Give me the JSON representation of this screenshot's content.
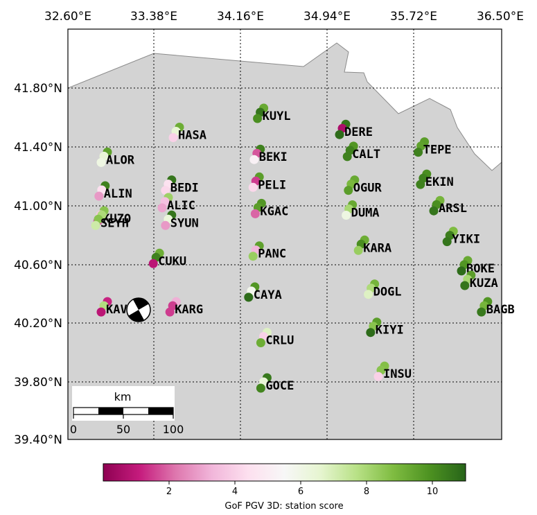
{
  "map": {
    "lon_ticks": [
      "32.60°E",
      "33.38°E",
      "34.16°E",
      "34.94°E",
      "35.72°E",
      "36.50°E"
    ],
    "lat_ticks": [
      "41.80°N",
      "41.40°N",
      "41.00°N",
      "40.60°N",
      "40.20°N",
      "39.80°N",
      "39.40°N"
    ],
    "extent": {
      "lon_min": 32.6,
      "lon_max": 36.5,
      "lat_min": 39.4,
      "lat_max": 42.2
    },
    "land_color": "#d3d3d3",
    "sea_color": "#ffffff",
    "gridlines": "dotted"
  },
  "scale_bar": {
    "unit": "km",
    "labels": [
      "0",
      "50",
      "100"
    ]
  },
  "event": {
    "lon": 33.24,
    "lat": 40.3,
    "symbol": "beachball"
  },
  "colorbar": {
    "title": "GoF PGV 3D: station score",
    "ticks": [
      "2",
      "4",
      "6",
      "8",
      "10"
    ],
    "range": [
      0,
      11
    ],
    "colormap": "PiYG",
    "colors": [
      "#8e0152",
      "#c51b7d",
      "#de77ae",
      "#f1b6da",
      "#fde0ef",
      "#f7f7f7",
      "#e6f5d0",
      "#b8e186",
      "#7fbc41",
      "#4d9221",
      "#276419"
    ]
  },
  "stations": [
    {
      "name": "HASA",
      "lon": 33.55,
      "lat": 41.46,
      "scores": [
        9.2,
        6.5,
        4.0
      ]
    },
    {
      "name": "ALOR",
      "lon": 32.9,
      "lat": 41.29,
      "scores": [
        9.5,
        6.4,
        6.1
      ]
    },
    {
      "name": "ALIN",
      "lon": 32.88,
      "lat": 41.06,
      "scores": [
        10.3,
        4.4,
        2.8
      ]
    },
    {
      "name": "KUZO",
      "lon": 32.87,
      "lat": 40.89,
      "scores": [
        8.6,
        3.8,
        1.8
      ]
    },
    {
      "name": "SEYH",
      "lon": 32.85,
      "lat": 40.86,
      "scores": [
        7.9,
        8.6,
        7.2
      ]
    },
    {
      "name": "BEDI",
      "lon": 33.48,
      "lat": 41.1,
      "scores": [
        10.6,
        4.5,
        4.2
      ]
    },
    {
      "name": "ALIC",
      "lon": 33.45,
      "lat": 40.98,
      "scores": [
        8.2,
        3.6,
        3.0
      ]
    },
    {
      "name": "SYUN",
      "lon": 33.48,
      "lat": 40.86,
      "scores": [
        10.6,
        6.3,
        2.8
      ]
    },
    {
      "name": "CUKU",
      "lon": 33.37,
      "lat": 40.6,
      "scores": [
        9.2,
        10.3,
        0.9
      ]
    },
    {
      "name": "KAVA",
      "lon": 32.9,
      "lat": 40.27,
      "scores": [
        1.2,
        7.8,
        0.9
      ]
    },
    {
      "name": "KARG",
      "lon": 33.52,
      "lat": 40.27,
      "scores": [
        3.2,
        1.5,
        1.5
      ]
    },
    {
      "name": "KUYL",
      "lon": 34.31,
      "lat": 41.59,
      "scores": [
        9.3,
        10.6,
        10.0
      ]
    },
    {
      "name": "BEKI",
      "lon": 34.28,
      "lat": 41.31,
      "scores": [
        10.3,
        1.8,
        5.2
      ]
    },
    {
      "name": "PELI",
      "lon": 34.27,
      "lat": 41.12,
      "scores": [
        9.6,
        1.5,
        4.2
      ]
    },
    {
      "name": "KGAC",
      "lon": 34.29,
      "lat": 40.94,
      "scores": [
        9.8,
        9.6,
        2.0
      ]
    },
    {
      "name": "PANC",
      "lon": 34.27,
      "lat": 40.65,
      "scores": [
        9.5,
        3.3,
        8.3
      ]
    },
    {
      "name": "CAYA",
      "lon": 34.23,
      "lat": 40.37,
      "scores": [
        9.8,
        5.8,
        10.8
      ]
    },
    {
      "name": "CRLU",
      "lon": 34.34,
      "lat": 40.06,
      "scores": [
        6.8,
        4.0,
        9.2
      ]
    },
    {
      "name": "GOCE",
      "lon": 34.34,
      "lat": 39.75,
      "scores": [
        10.5,
        6.4,
        10.2
      ]
    },
    {
      "name": "DERE",
      "lon": 35.05,
      "lat": 41.48,
      "scores": [
        10.6,
        0.6,
        10.8
      ]
    },
    {
      "name": "CALT",
      "lon": 35.12,
      "lat": 41.33,
      "scores": [
        9.8,
        10.3,
        10.3
      ]
    },
    {
      "name": "OGUR",
      "lon": 35.13,
      "lat": 41.1,
      "scores": [
        9.3,
        8.9,
        9.6
      ]
    },
    {
      "name": "DUMA",
      "lon": 35.11,
      "lat": 40.93,
      "scores": [
        9.3,
        8.0,
        6.1
      ]
    },
    {
      "name": "KARA",
      "lon": 35.22,
      "lat": 40.69,
      "scores": [
        9.2,
        10.0,
        8.3
      ]
    },
    {
      "name": "DOGL",
      "lon": 35.31,
      "lat": 40.39,
      "scores": [
        9.0,
        7.9,
        6.8
      ]
    },
    {
      "name": "KIYI",
      "lon": 35.33,
      "lat": 40.13,
      "scores": [
        9.6,
        8.6,
        10.8
      ]
    },
    {
      "name": "INSU",
      "lon": 35.4,
      "lat": 39.83,
      "scores": [
        8.7,
        8.6,
        4.0
      ]
    },
    {
      "name": "TEPE",
      "lon": 35.76,
      "lat": 41.36,
      "scores": [
        9.6,
        9.5,
        10.3
      ]
    },
    {
      "name": "EKIN",
      "lon": 35.78,
      "lat": 41.14,
      "scores": [
        10.0,
        10.3,
        10.3
      ]
    },
    {
      "name": "ARSL",
      "lon": 35.9,
      "lat": 40.96,
      "scores": [
        9.0,
        10.0,
        10.6
      ]
    },
    {
      "name": "YIKI",
      "lon": 36.02,
      "lat": 40.75,
      "scores": [
        8.8,
        10.4,
        10.6
      ]
    },
    {
      "name": "BOKE",
      "lon": 36.15,
      "lat": 40.55,
      "scores": [
        9.3,
        9.8,
        10.8
      ]
    },
    {
      "name": "KUZA",
      "lon": 36.18,
      "lat": 40.45,
      "scores": [
        9.6,
        8.0,
        10.6
      ]
    },
    {
      "name": "BAGB",
      "lon": 36.33,
      "lat": 40.27,
      "scores": [
        9.8,
        9.0,
        10.5
      ]
    }
  ]
}
